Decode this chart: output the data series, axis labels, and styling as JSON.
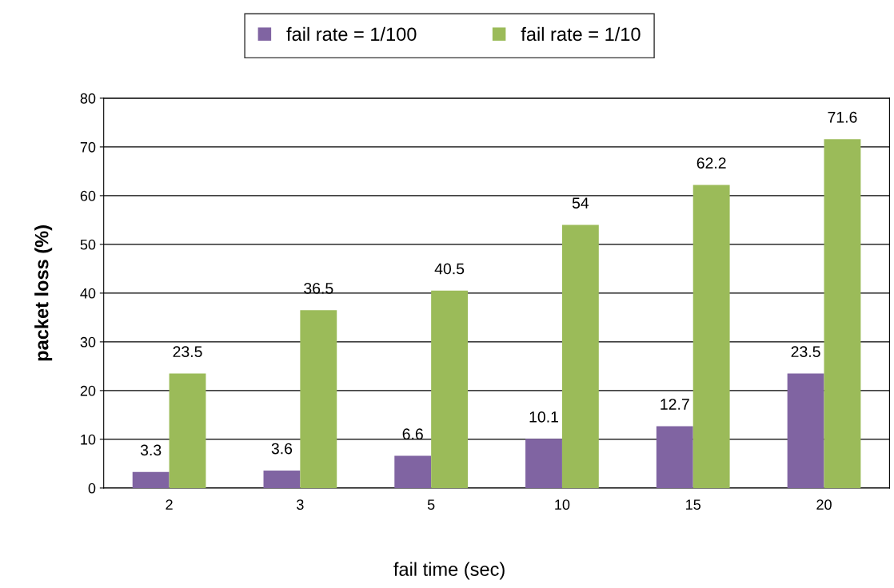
{
  "chart_data": {
    "type": "bar",
    "xlabel": "fail time (sec)",
    "ylabel": "packet loss (%)",
    "categories": [
      "2",
      "3",
      "5",
      "10",
      "15",
      "20"
    ],
    "series": [
      {
        "name": "fail rate = 1/100",
        "color": "#8064a2",
        "values": [
          3.3,
          3.6,
          6.6,
          10.1,
          12.7,
          23.5
        ]
      },
      {
        "name": "fail rate = 1/10",
        "color": "#9bbb59",
        "values": [
          23.5,
          36.5,
          40.5,
          54,
          62.2,
          71.6
        ]
      }
    ],
    "ylim": [
      0,
      80
    ],
    "yticks": [
      0,
      10,
      20,
      30,
      40,
      50,
      60,
      70,
      80
    ],
    "grid": "y",
    "legend": "top",
    "data_labels": true
  }
}
